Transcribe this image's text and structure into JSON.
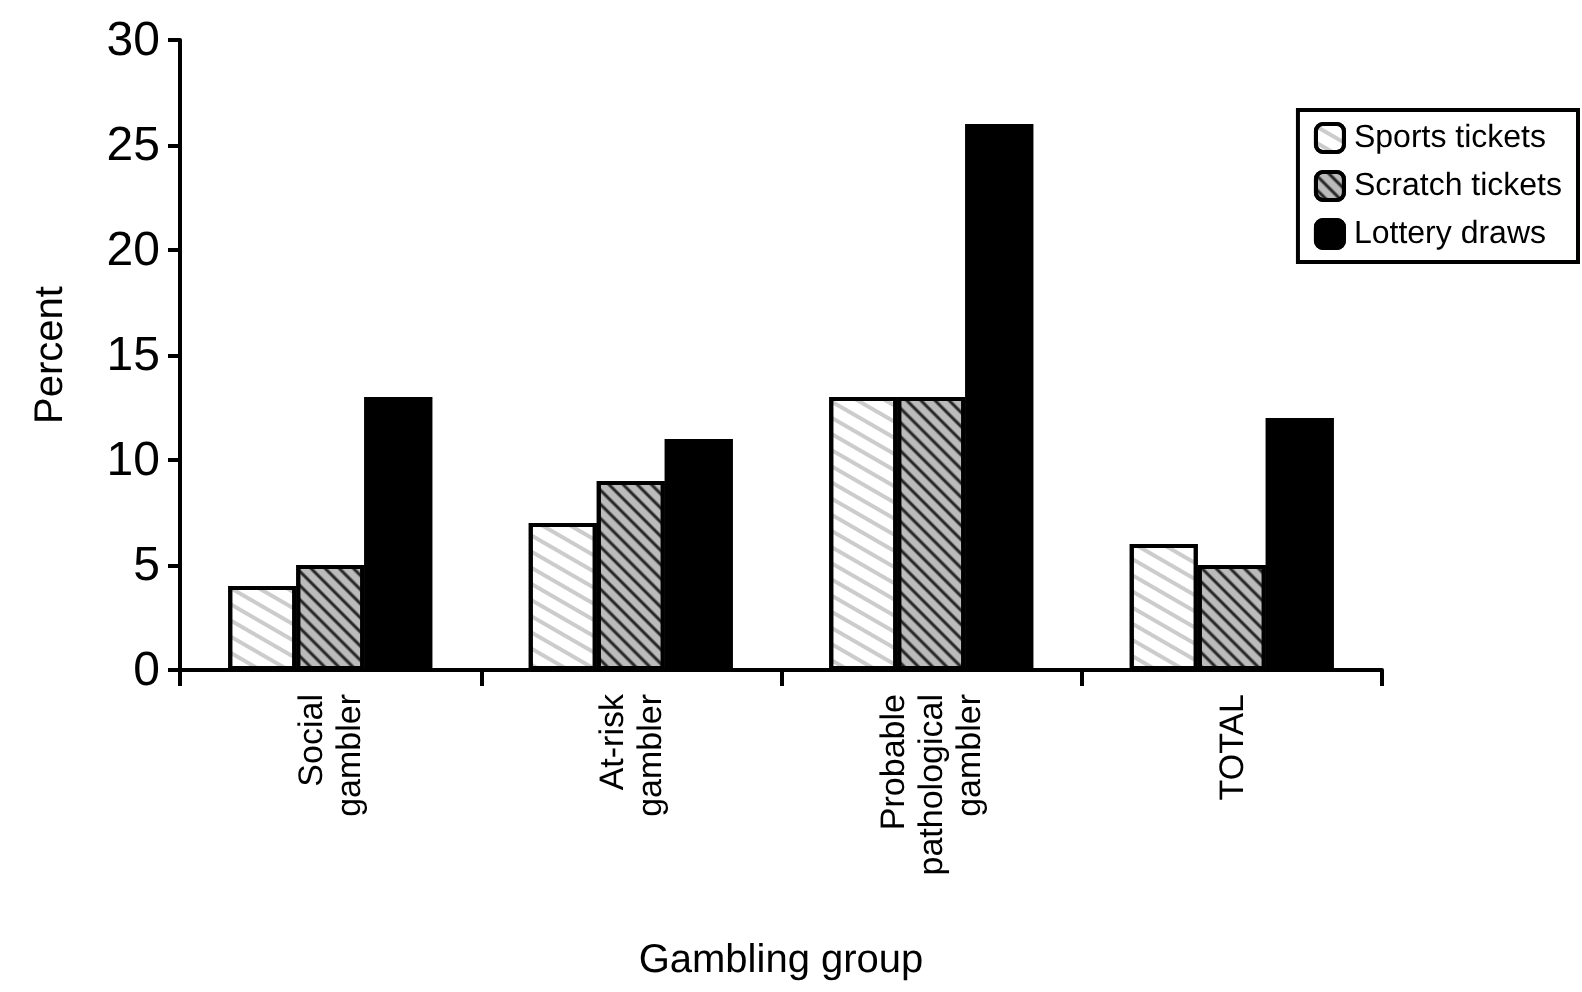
{
  "chart_data": {
    "type": "bar",
    "xlabel": "Gambling group",
    "ylabel": "Percent",
    "categories": [
      "Social gambler",
      "At-risk gambler",
      "Probable pathological gambler",
      "TOTAL"
    ],
    "series": [
      {
        "name": "Sports tickets",
        "color": "#ffffff",
        "values": [
          4,
          7,
          13,
          6
        ]
      },
      {
        "name": "Scratch tickets",
        "color": "#bbbbbb",
        "values": [
          5,
          9,
          13,
          5
        ]
      },
      {
        "name": "Lottery draws",
        "color": "#000000",
        "values": [
          13,
          11,
          26,
          12
        ]
      }
    ],
    "ylim": [
      0,
      30
    ],
    "yticks": [
      0,
      5,
      10,
      15,
      20,
      25,
      30
    ],
    "grid": false,
    "legend": "top right"
  }
}
